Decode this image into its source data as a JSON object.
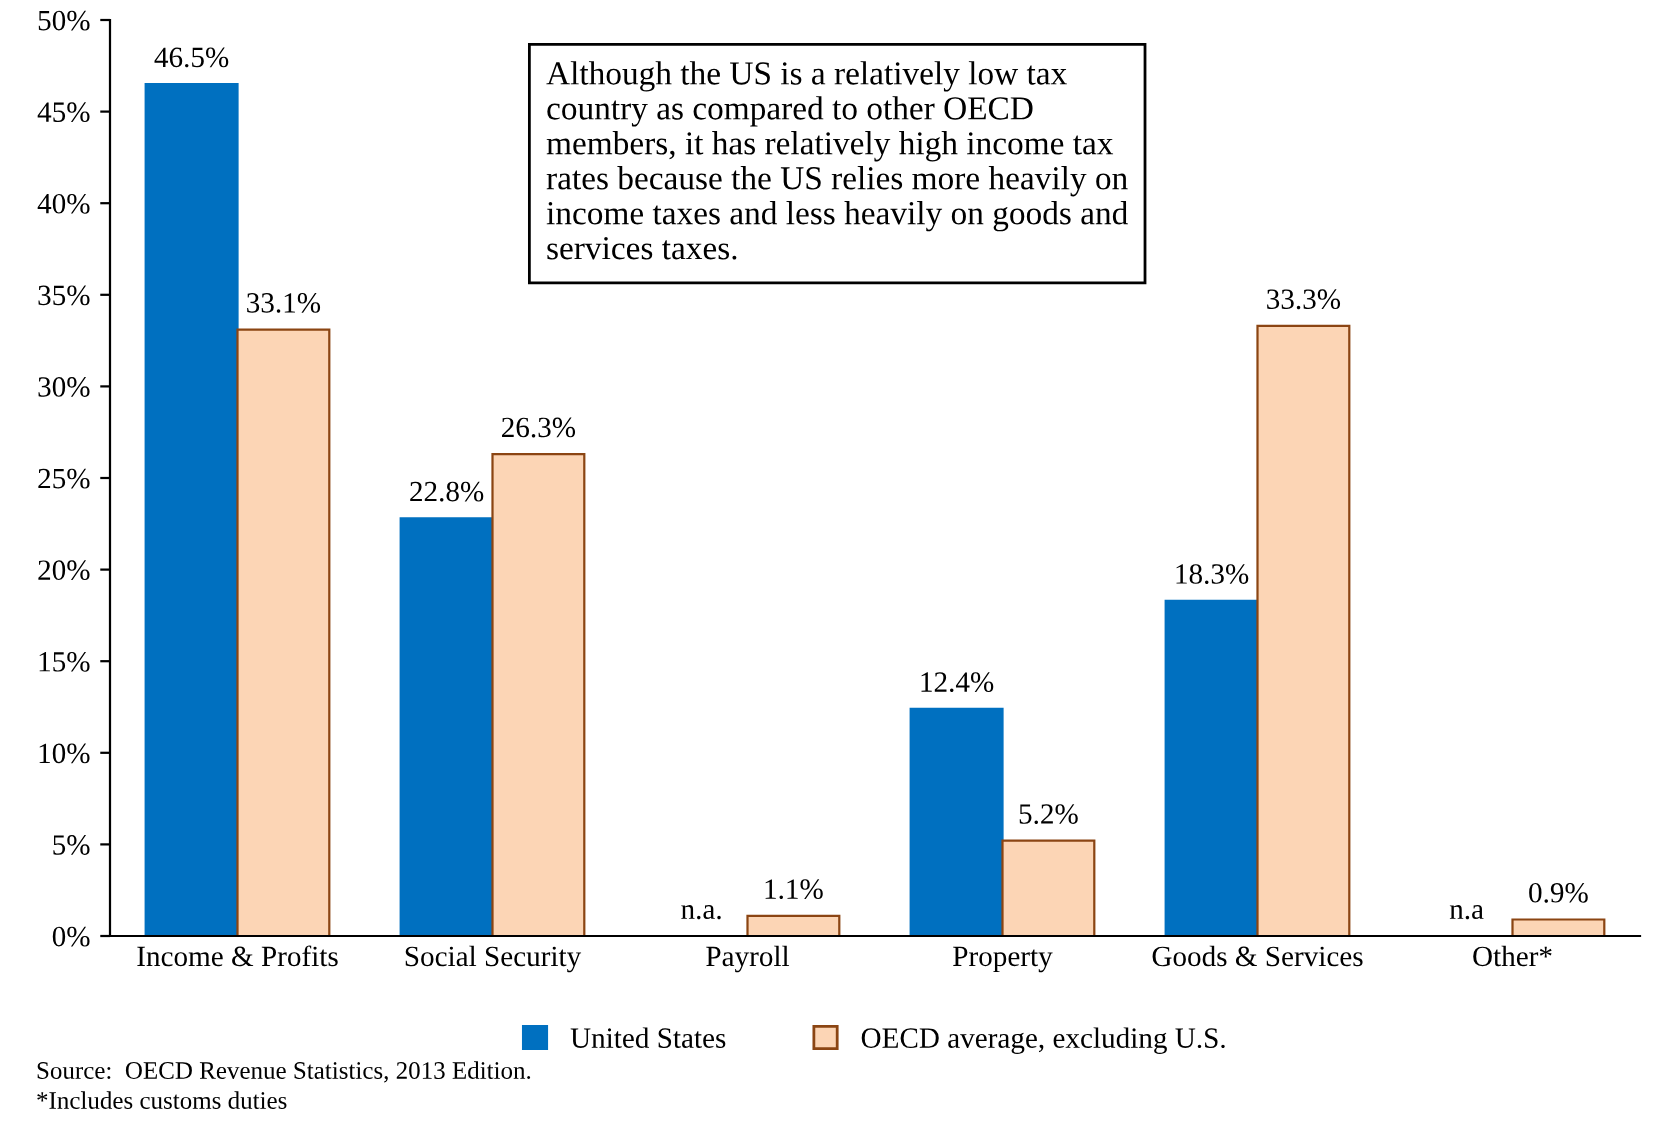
{
  "chart_data": {
    "type": "bar",
    "categories": [
      "Income & Profits",
      "Social Security",
      "Payroll",
      "Property",
      "Goods & Services",
      "Other*"
    ],
    "series": [
      {
        "name": "United States",
        "color": "#0070c0",
        "values": [
          46.5,
          22.8,
          null,
          12.4,
          18.3,
          null
        ],
        "value_labels": [
          "46.5%",
          "22.8%",
          "n.a.",
          "12.4%",
          "18.3%",
          "n.a"
        ]
      },
      {
        "name": "OECD average, excluding U.S.",
        "color": "#fcd5b5",
        "values": [
          33.1,
          26.3,
          1.1,
          5.2,
          33.3,
          0.9
        ],
        "value_labels": [
          "33.1%",
          "26.3%",
          "1.1%",
          "5.2%",
          "33.3%",
          "0.9%"
        ]
      }
    ],
    "ylim": [
      0,
      50
    ],
    "yticks": [
      {
        "value": 0,
        "label": "0%"
      },
      {
        "value": 5,
        "label": "5%"
      },
      {
        "value": 10,
        "label": "10%"
      },
      {
        "value": 15,
        "label": "15%"
      },
      {
        "value": 20,
        "label": "20%"
      },
      {
        "value": 25,
        "label": "25%"
      },
      {
        "value": 30,
        "label": "30%"
      },
      {
        "value": 35,
        "label": "35%"
      },
      {
        "value": 40,
        "label": "40%"
      },
      {
        "value": 45,
        "label": "45%"
      },
      {
        "value": 50,
        "label": "50%"
      }
    ],
    "grid": false,
    "legend": "bottom",
    "annotations": [
      "Although the US is a relatively low tax\ncountry as compared to other OECD\nmembers, it has relatively high income tax\nrates because the US relies more heavily on\nincome taxes and less heavily on goods and\nservices taxes.",
      "Source:  OECD Revenue Statistics, 2013 Edition.",
      "*Includes customs duties"
    ]
  }
}
